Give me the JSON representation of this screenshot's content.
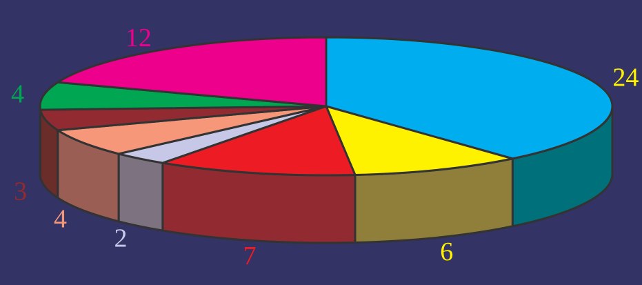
{
  "chart_data": {
    "type": "pie",
    "values": [
      24,
      6,
      7,
      2,
      4,
      3,
      4,
      12
    ],
    "labels": [
      "24",
      "6",
      "7",
      "2",
      "4",
      "3",
      "4",
      "12"
    ],
    "colors": {
      "top": [
        "#00AEEF",
        "#FFF200",
        "#ED1C24",
        "#C7C7E8",
        "#F7977A",
        "#922B31",
        "#00A651",
        "#EC008C"
      ],
      "side": [
        "#00707A",
        "#8F7F3A",
        "#922B31",
        "#7D7380",
        "#9A5E55",
        "#6A2D2A",
        "#00704A",
        "#9D005D"
      ],
      "label": [
        "#FFF200",
        "#FFF200",
        "#ED1C24",
        "#C7C7E8",
        "#F7977A",
        "#922B31",
        "#00A651",
        "#EC008C"
      ],
      "background": "#333366",
      "outline": "#333333"
    },
    "title": "",
    "legend": "none",
    "three_d": true
  }
}
